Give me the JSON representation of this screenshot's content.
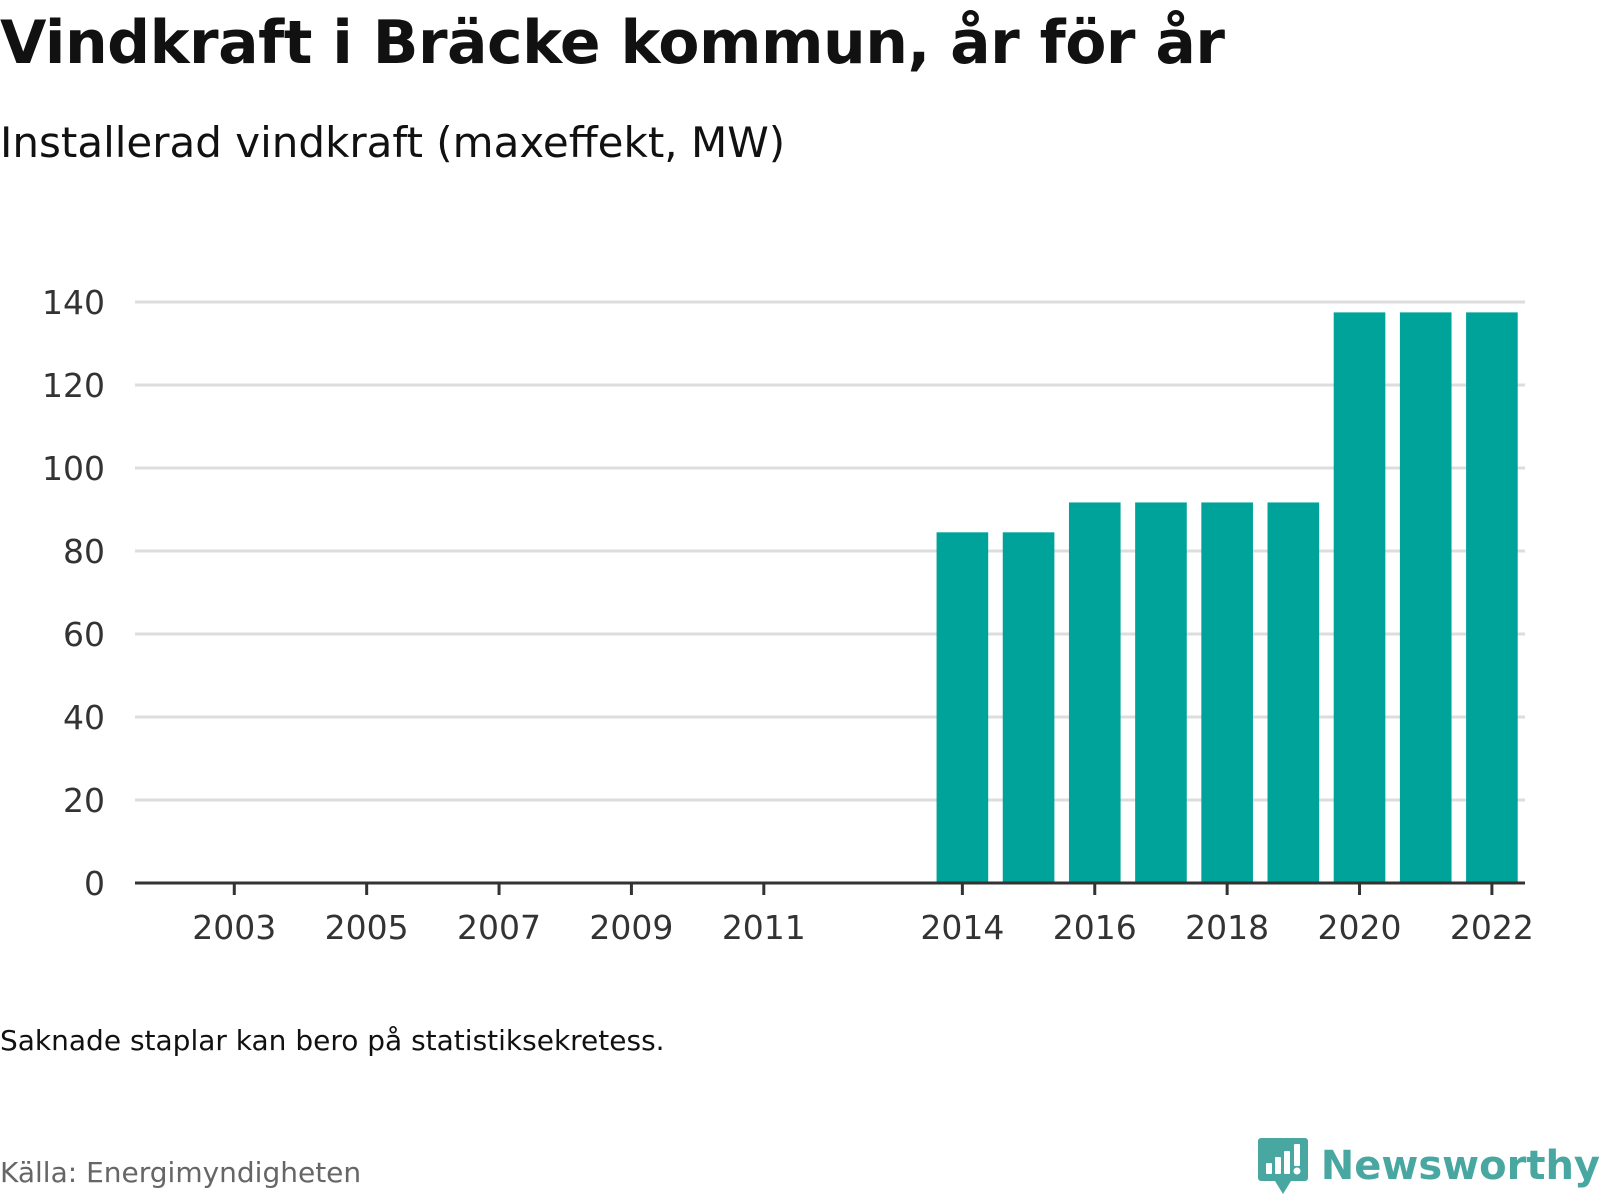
{
  "chart_data": {
    "type": "bar",
    "title": "Vindkraft i Bräcke kommun, år för år",
    "subtitle": "Installerad vindkraft (maxeffekt, MW)",
    "xlabel": "",
    "ylabel": "",
    "categories": [
      "2002",
      "2003",
      "2004",
      "2005",
      "2006",
      "2007",
      "2008",
      "2009",
      "2010",
      "2011",
      "2012",
      "2013",
      "2014",
      "2015",
      "2016",
      "2017",
      "2018",
      "2019",
      "2020",
      "2021",
      "2022"
    ],
    "x_tick_labels": [
      "2003",
      "2005",
      "2007",
      "2009",
      "2011",
      "2014",
      "2016",
      "2018",
      "2020",
      "2022"
    ],
    "values": [
      null,
      null,
      null,
      null,
      null,
      null,
      null,
      null,
      null,
      null,
      null,
      null,
      84.5,
      84.5,
      91.7,
      91.7,
      91.7,
      91.7,
      137.5,
      137.5,
      137.5
    ],
    "y_ticks": [
      0,
      20,
      40,
      60,
      80,
      100,
      120,
      140
    ],
    "ylim": [
      0,
      140
    ],
    "grid": true,
    "legend": "none",
    "bar_color": "#00a39a",
    "axis_color": "#333333",
    "grid_color": "#dddddd"
  },
  "page": {
    "title": "Vindkraft i Bräcke kommun, år för år",
    "subtitle": "Installerad vindkraft (maxeffekt, MW)",
    "note": "Saknade staplar kan bero på statistiksekretess.",
    "source": "Källa: Energimyndigheten",
    "brand": "Newsworthy",
    "brand_icon": "bar-chart-icon",
    "brand_color": "#48a7a0"
  }
}
